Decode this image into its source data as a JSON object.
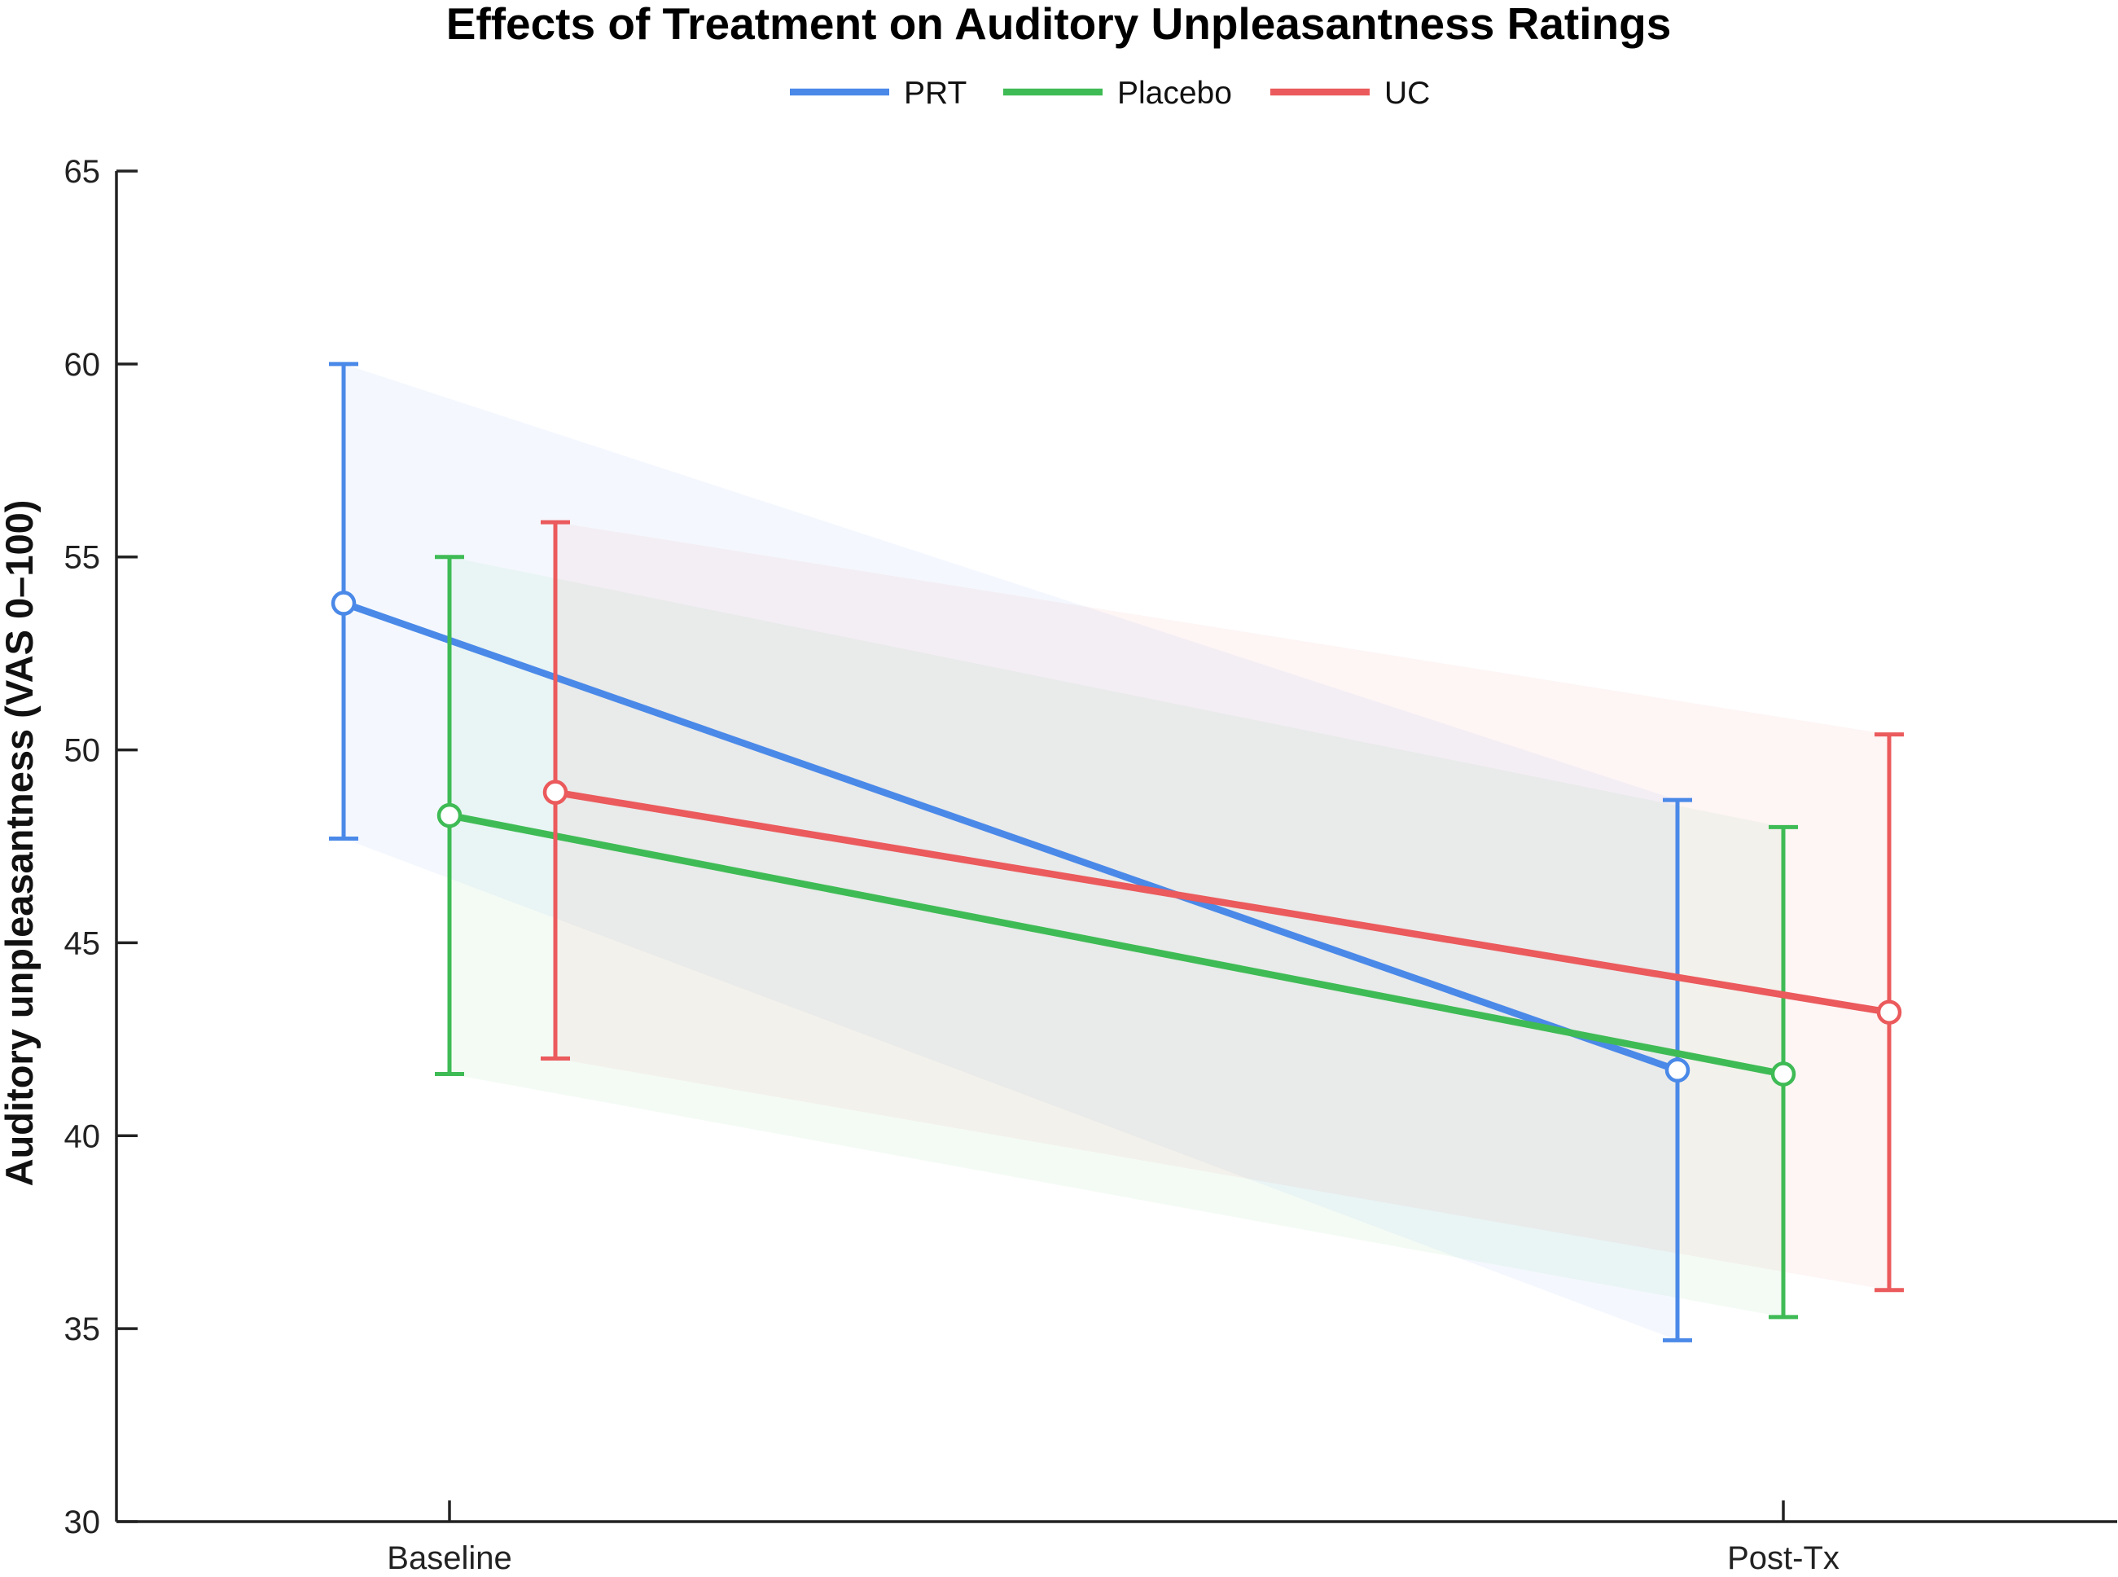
{
  "chart_data": {
    "type": "line",
    "title": "Effects of Treatment on Auditory Unpleasantness Ratings",
    "xlabel": "",
    "ylabel": "Auditory unpleasantness (VAS 0–100)",
    "categories": [
      "Baseline",
      "Post-Tx"
    ],
    "ylim": [
      30,
      65
    ],
    "yticks": [
      30,
      35,
      40,
      45,
      50,
      55,
      60,
      65
    ],
    "grid": false,
    "legend": "top-center",
    "series": [
      {
        "name": "PRT",
        "color": "#4a89e8",
        "values": [
          53.8,
          41.7
        ],
        "lower": [
          47.7,
          34.7
        ],
        "upper": [
          60.0,
          48.7
        ]
      },
      {
        "name": "Placebo",
        "color": "#3fbb55",
        "values": [
          48.3,
          41.6
        ],
        "lower": [
          41.6,
          35.3
        ],
        "upper": [
          55.0,
          48.0
        ]
      },
      {
        "name": "UC",
        "color": "#eb5a5c",
        "values": [
          48.9,
          43.2
        ],
        "lower": [
          42.0,
          36.0
        ],
        "upper": [
          55.9,
          50.4
        ]
      }
    ]
  }
}
